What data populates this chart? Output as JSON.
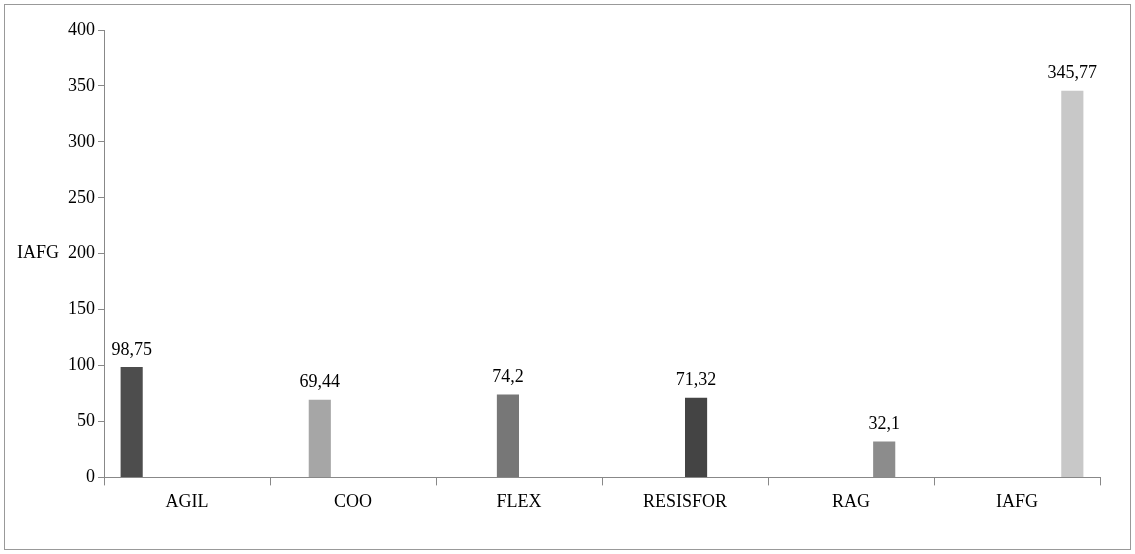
{
  "chart_data": {
    "type": "bar",
    "ylabel": "IAFG",
    "categories": [
      "AGIL",
      "COO",
      "FLEX",
      "RESISFOR",
      "RAG",
      "IAFG"
    ],
    "series": [
      {
        "color": "#4d4d4d",
        "values": [
          98.75,
          null,
          null,
          null,
          null,
          null
        ],
        "value_labels": [
          "98,75",
          null,
          null,
          null,
          null,
          null
        ]
      },
      {
        "color": "#a6a6a6",
        "values": [
          null,
          69.44,
          null,
          null,
          null,
          null
        ],
        "value_labels": [
          null,
          "69,44",
          null,
          null,
          null,
          null
        ]
      },
      {
        "color": "#777777",
        "values": [
          null,
          null,
          74.2,
          null,
          null,
          null
        ],
        "value_labels": [
          null,
          null,
          "74,2",
          null,
          null,
          null
        ]
      },
      {
        "color": "#444444",
        "values": [
          null,
          null,
          null,
          71.32,
          null,
          null
        ],
        "value_labels": [
          null,
          null,
          null,
          "71,32",
          null,
          null
        ]
      },
      {
        "color": "#8c8c8c",
        "values": [
          null,
          null,
          null,
          null,
          32.1,
          null
        ],
        "value_labels": [
          null,
          null,
          null,
          null,
          "32,1",
          null
        ]
      },
      {
        "color": "#c8c8c8",
        "values": [
          null,
          null,
          null,
          null,
          null,
          345.77
        ],
        "value_labels": [
          null,
          null,
          null,
          null,
          null,
          "345,77"
        ]
      }
    ],
    "ylim": [
      0,
      400
    ],
    "yticks": [
      0,
      50,
      100,
      150,
      200,
      250,
      300,
      350,
      400
    ],
    "grid": false,
    "legend": false
  }
}
